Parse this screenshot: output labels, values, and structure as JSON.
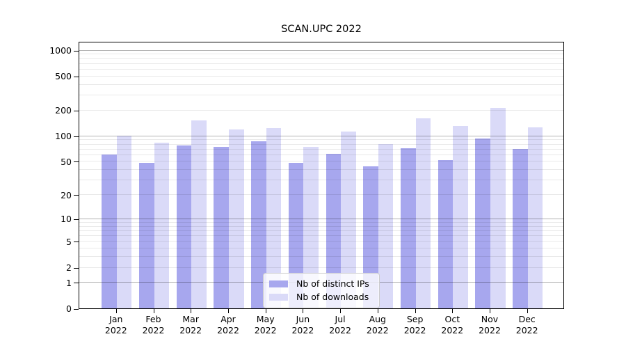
{
  "title": "SCAN.UPC 2022",
  "chart_data": {
    "type": "bar",
    "title": "SCAN.UPC 2022",
    "categories": [
      "Jan",
      "Feb",
      "Mar",
      "Apr",
      "May",
      "Jun",
      "Jul",
      "Aug",
      "Sep",
      "Oct",
      "Nov",
      "Dec"
    ],
    "category_year": "2022",
    "series": [
      {
        "name": "Nb of distinct IPs",
        "color": "#a7a7ee",
        "values": [
          60,
          48,
          78,
          75,
          86,
          48,
          62,
          44,
          71,
          52,
          93,
          70
        ]
      },
      {
        "name": "Nb of downloads",
        "color": "#dadaf8",
        "values": [
          100,
          83,
          153,
          120,
          123,
          74,
          113,
          81,
          160,
          130,
          212,
          125
        ]
      }
    ],
    "xlabel": "",
    "ylabel": "",
    "yscale": "log10(value+1)",
    "ylim": [
      0,
      1280
    ],
    "yticks": [
      1000,
      500,
      200,
      100,
      50,
      20,
      10,
      5,
      2,
      1,
      0
    ],
    "minor_yticks": [
      900,
      800,
      700,
      600,
      400,
      300,
      90,
      80,
      70,
      60,
      40,
      30,
      9,
      8,
      7,
      6,
      4,
      3
    ],
    "grid": true,
    "legend_position": "lower center inside"
  },
  "colors": {
    "background": "#ffffff",
    "spine": "#000000",
    "major_gridline": "#b2b2b2",
    "minor_gridline": "#eaeaea",
    "bar_distinct_ips": "#a7a7ee",
    "bar_downloads": "#dadaf8",
    "legend_border": "#cccccc",
    "text": "#000000"
  }
}
